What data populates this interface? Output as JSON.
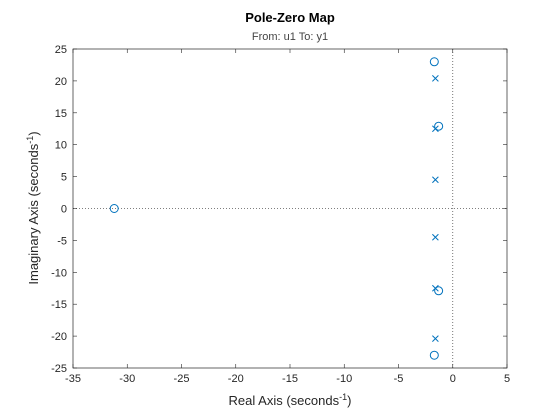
{
  "chart_data": {
    "type": "pole-zero",
    "title": "Pole-Zero Map",
    "subtitle": "From: u1  To: y1",
    "xlabel": [
      "Real  Axis  (seconds",
      "-1",
      ")"
    ],
    "ylabel": [
      "Imaginary  Axis  (seconds",
      "-1",
      ")"
    ],
    "xlim": [
      -35,
      5
    ],
    "ylim": [
      -25,
      25
    ],
    "xticks": [
      -35,
      -30,
      -25,
      -20,
      -15,
      -10,
      -5,
      0,
      5
    ],
    "yticks": [
      -25,
      -20,
      -15,
      -10,
      -5,
      0,
      5,
      10,
      15,
      20,
      25
    ],
    "color": "#0072bd",
    "zeros": {
      "marker": "o",
      "x": [
        -31.2,
        -1.7,
        -1.7,
        -1.3,
        -1.3
      ],
      "y": [
        0,
        23,
        -23,
        12.9,
        -12.9
      ]
    },
    "poles": {
      "marker": "x",
      "x": [
        -1.6,
        -1.6,
        -1.6,
        -1.6,
        -1.6,
        -1.6
      ],
      "y": [
        20.4,
        -20.4,
        12.5,
        -12.5,
        4.5,
        -4.5
      ]
    }
  }
}
